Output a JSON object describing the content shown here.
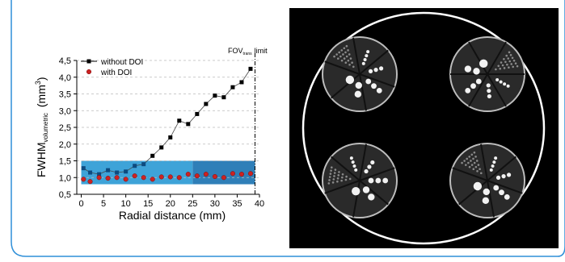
{
  "colors": {
    "frame_border": "#2f8fd8",
    "shade_left": "#3ea3d8",
    "shade_right": "#2f7fb8",
    "series_without": "#000000",
    "series_with": "#cc2222",
    "marker_without_fill": "#0d4b80",
    "phantom_bg": "#000000",
    "phantom_ring": "#ffffff"
  },
  "chart_data": {
    "type": "scatter",
    "xlabel": "Radial distance (mm)",
    "ylabel_main": "FWHM",
    "ylabel_sub": "volumetric",
    "ylabel_unit_open": "(mm",
    "ylabel_unit_exp": "3",
    "ylabel_unit_close": ")",
    "xlim": [
      -1,
      40
    ],
    "ylim": [
      0.5,
      4.5
    ],
    "xticks": [
      0,
      5,
      10,
      15,
      20,
      25,
      30,
      35,
      40
    ],
    "yticks": [
      0.5,
      1.0,
      1.5,
      2.0,
      2.5,
      3.0,
      3.5,
      4.0,
      4.5
    ],
    "ytick_labels": [
      "0,5",
      "1,0",
      "1,5",
      "2,0",
      "2,5",
      "3,0",
      "3,5",
      "4,0",
      "4,5"
    ],
    "xtick_labels": [
      "0",
      "5",
      "10",
      "15",
      "20",
      "25",
      "30",
      "35",
      "40"
    ],
    "grid": "horizontal dashed",
    "legend_position": "top-left",
    "shaded_band": {
      "y": [
        0.8,
        1.5
      ],
      "x": [
        0,
        39
      ],
      "split_x": 25
    },
    "fov_line": {
      "x": 39,
      "label_main": "FOV",
      "label_sub": "trans",
      "label_tail": "limit"
    },
    "series": [
      {
        "name": "without DOI",
        "marker": "square",
        "connected": true,
        "x": [
          0.5,
          2,
          4,
          6,
          8,
          10,
          12,
          14,
          16,
          18,
          20,
          22,
          24,
          26,
          28,
          30,
          32,
          34,
          36,
          38
        ],
        "y": [
          1.28,
          1.15,
          1.1,
          1.22,
          1.15,
          1.18,
          1.35,
          1.4,
          1.65,
          1.9,
          2.2,
          2.7,
          2.6,
          2.9,
          3.2,
          3.45,
          3.4,
          3.7,
          3.85,
          4.25
        ]
      },
      {
        "name": "with DOI",
        "marker": "circle",
        "connected": false,
        "x": [
          0.5,
          2,
          4,
          6,
          8,
          10,
          12,
          14,
          16,
          18,
          20,
          22,
          24,
          26,
          28,
          30,
          32,
          34,
          36,
          38
        ],
        "y": [
          0.95,
          0.88,
          1.0,
          0.98,
          1.0,
          0.95,
          1.05,
          1.0,
          0.95,
          1.02,
          1.02,
          1.0,
          1.1,
          1.05,
          1.1,
          1.03,
          1.0,
          1.12,
          1.1,
          1.12
        ]
      }
    ]
  },
  "phantom": {
    "description_icon": "phantom-image-icon"
  }
}
